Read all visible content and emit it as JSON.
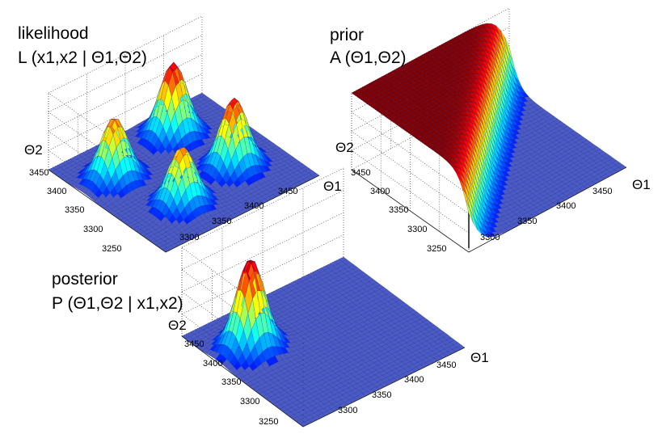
{
  "chart_data": [
    {
      "type": "surface3d",
      "id": "likelihood",
      "title_line1": "likelihood",
      "title_line2": "L (x1,x2 | Θ1,Θ2)",
      "xlabel": "Θ1",
      "ylabel": "Θ2",
      "x_ticks": [
        "3300",
        "3350",
        "3400",
        "3450"
      ],
      "y_ticks": [
        "3250",
        "3300",
        "3350",
        "3400",
        "3450"
      ],
      "xlim": [
        3250,
        3500
      ],
      "ylim": [
        3250,
        3500
      ],
      "zlim": [
        0,
        1
      ],
      "peaks": [
        {
          "theta1": 3300,
          "theta2": 3425,
          "height": 0.8
        },
        {
          "theta1": 3415,
          "theta2": 3450,
          "height": 0.95
        },
        {
          "theta1": 3330,
          "theta2": 3320,
          "height": 0.75
        },
        {
          "theta1": 3430,
          "theta2": 3340,
          "height": 0.9
        }
      ],
      "colormap": "jet",
      "grid": true
    },
    {
      "type": "surface3d",
      "id": "prior",
      "title_line1": "prior",
      "title_line2": "A (Θ1,Θ2)",
      "xlabel": "Θ1",
      "ylabel": "Θ2",
      "x_ticks": [
        "3300",
        "3350",
        "3400",
        "3450"
      ],
      "y_ticks": [
        "3250",
        "3300",
        "3350",
        "3400",
        "3450"
      ],
      "xlim": [
        3250,
        3500
      ],
      "ylim": [
        3250,
        3500
      ],
      "zlim": [
        0,
        1
      ],
      "shape": "sigmoid step along diagonal Θ2 = Θ1, high where Θ2 > Θ1",
      "colormap": "jet",
      "grid": true
    },
    {
      "type": "surface3d",
      "id": "posterior",
      "title_line1": "posterior",
      "title_line2": "P (Θ1,Θ2 | x1,x2)",
      "xlabel": "Θ1",
      "ylabel": "Θ2",
      "x_ticks": [
        "3300",
        "3350",
        "3400",
        "3450"
      ],
      "y_ticks": [
        "3250",
        "3300",
        "3350",
        "3400",
        "3450"
      ],
      "xlim": [
        3250,
        3500
      ],
      "ylim": [
        3250,
        3500
      ],
      "zlim": [
        0,
        1
      ],
      "peaks": [
        {
          "theta1": 3300,
          "theta2": 3425,
          "height": 1.0
        }
      ],
      "colormap": "jet",
      "grid": true
    }
  ]
}
